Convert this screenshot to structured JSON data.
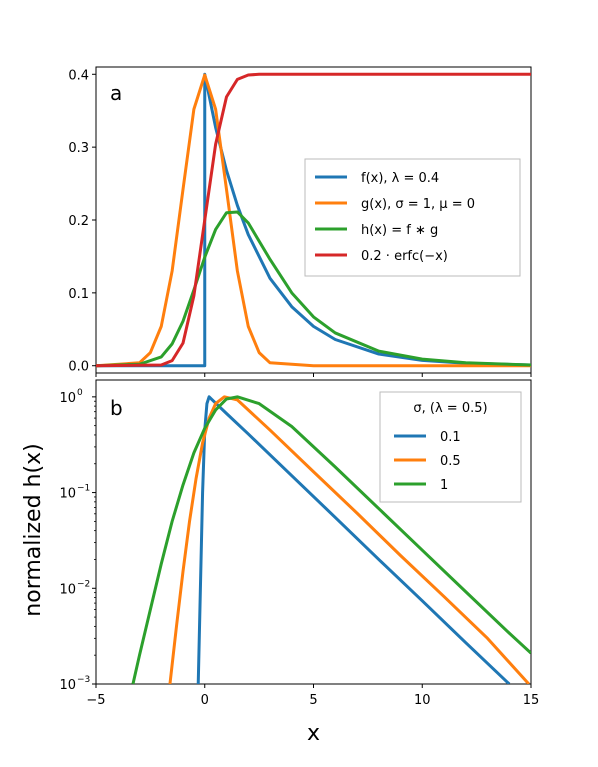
{
  "chart_data": [
    {
      "panel_label": "a",
      "type": "line",
      "xlim": [
        -5,
        15
      ],
      "ylim": [
        -0.01,
        0.41
      ],
      "yscale": "linear",
      "yticks": [
        0.0,
        0.1,
        0.2,
        0.3,
        0.4
      ],
      "ytick_labels": [
        "0.0",
        "0.1",
        "0.2",
        "0.3",
        "0.4"
      ],
      "legend_location": "center-right",
      "series": [
        {
          "name": "f(x),  λ = 0.4",
          "color": "#1f77b4",
          "x": [
            -5,
            0,
            0,
            0.5,
            1,
            1.5,
            2,
            3,
            4,
            5,
            6,
            8,
            10,
            12,
            15
          ],
          "y": [
            0,
            0,
            0.4,
            0.327,
            0.268,
            0.22,
            0.18,
            0.12,
            0.081,
            0.054,
            0.036,
            0.016,
            0.0073,
            0.0033,
            0.001
          ]
        },
        {
          "name": "g(x),  σ = 1,  μ = 0",
          "color": "#ff7f0e",
          "x": [
            -5,
            -3,
            -2.5,
            -2,
            -1.5,
            -1,
            -0.5,
            0,
            0.5,
            1,
            1.5,
            2,
            2.5,
            3,
            5,
            15
          ],
          "y": [
            0,
            0.004,
            0.018,
            0.054,
            0.13,
            0.242,
            0.352,
            0.399,
            0.352,
            0.242,
            0.13,
            0.054,
            0.018,
            0.004,
            0,
            0
          ]
        },
        {
          "name": "h(x) = f ∗ g",
          "color": "#2ca02c",
          "x": [
            -5,
            -3,
            -2,
            -1.5,
            -1,
            -0.5,
            0,
            0.5,
            1,
            1.5,
            2,
            3,
            4,
            5,
            6,
            8,
            10,
            12,
            15
          ],
          "y": [
            0,
            0.002,
            0.012,
            0.03,
            0.061,
            0.104,
            0.149,
            0.187,
            0.21,
            0.211,
            0.196,
            0.146,
            0.1,
            0.067,
            0.045,
            0.02,
            0.009,
            0.004,
            0.001
          ]
        },
        {
          "name": "0.2 · erfc(−x)",
          "color": "#d62728",
          "x": [
            -5,
            -2,
            -1.5,
            -1,
            -0.5,
            0,
            0.5,
            1,
            1.5,
            2,
            2.5,
            15
          ],
          "y": [
            0,
            0.001,
            0.007,
            0.031,
            0.096,
            0.2,
            0.304,
            0.369,
            0.393,
            0.399,
            0.4,
            0.4
          ]
        }
      ]
    },
    {
      "panel_label": "b",
      "type": "line",
      "xlim": [
        -5,
        15
      ],
      "ylim": [
        0.001,
        1.5
      ],
      "yscale": "log",
      "yticks": [
        1,
        0.1,
        0.01,
        0.001
      ],
      "ytick_labels": [
        "10",
        "10",
        "10",
        "10"
      ],
      "ytick_exponents": [
        "0",
        "−1",
        "−2",
        "−3"
      ],
      "xticks": [
        -5,
        0,
        5,
        10,
        15
      ],
      "xtick_labels": [
        "−5",
        "0",
        "5",
        "10",
        "15"
      ],
      "xlabel": "x",
      "ylabel": "normalized  h(x)",
      "legend_title": "σ,  (λ = 0.5)",
      "legend_location": "top-right",
      "series": [
        {
          "name": "0.1",
          "color": "#1f77b4",
          "x": [
            -0.3,
            -0.2,
            -0.1,
            0,
            0.1,
            0.2,
            0.3,
            1,
            2,
            4,
            6,
            8,
            10,
            12,
            14
          ],
          "y": [
            0.001,
            0.01,
            0.1,
            0.45,
            0.85,
            1.0,
            0.95,
            0.67,
            0.41,
            0.15,
            0.055,
            0.02,
            0.0074,
            0.0027,
            0.001
          ]
        },
        {
          "name": "0.5",
          "color": "#ff7f0e",
          "x": [
            -1.6,
            -1.3,
            -1,
            -0.7,
            -0.4,
            -0.1,
            0.2,
            0.5,
            0.9,
            1.5,
            3,
            5,
            7,
            9,
            11,
            13,
            14.9
          ],
          "y": [
            0.001,
            0.004,
            0.015,
            0.05,
            0.14,
            0.33,
            0.6,
            0.85,
            1.0,
            0.93,
            0.45,
            0.165,
            0.061,
            0.022,
            0.0082,
            0.003,
            0.001
          ]
        },
        {
          "name": "1",
          "color": "#2ca02c",
          "x": [
            -3.3,
            -3,
            -2.5,
            -2,
            -1.5,
            -1,
            -0.5,
            0,
            0.5,
            1,
            1.5,
            2.5,
            4,
            6,
            8,
            10,
            12,
            14,
            15
          ],
          "y": [
            0.001,
            0.002,
            0.006,
            0.018,
            0.05,
            0.12,
            0.26,
            0.47,
            0.73,
            0.95,
            1.0,
            0.85,
            0.49,
            0.185,
            0.068,
            0.025,
            0.0092,
            0.0034,
            0.0021
          ]
        }
      ]
    }
  ]
}
